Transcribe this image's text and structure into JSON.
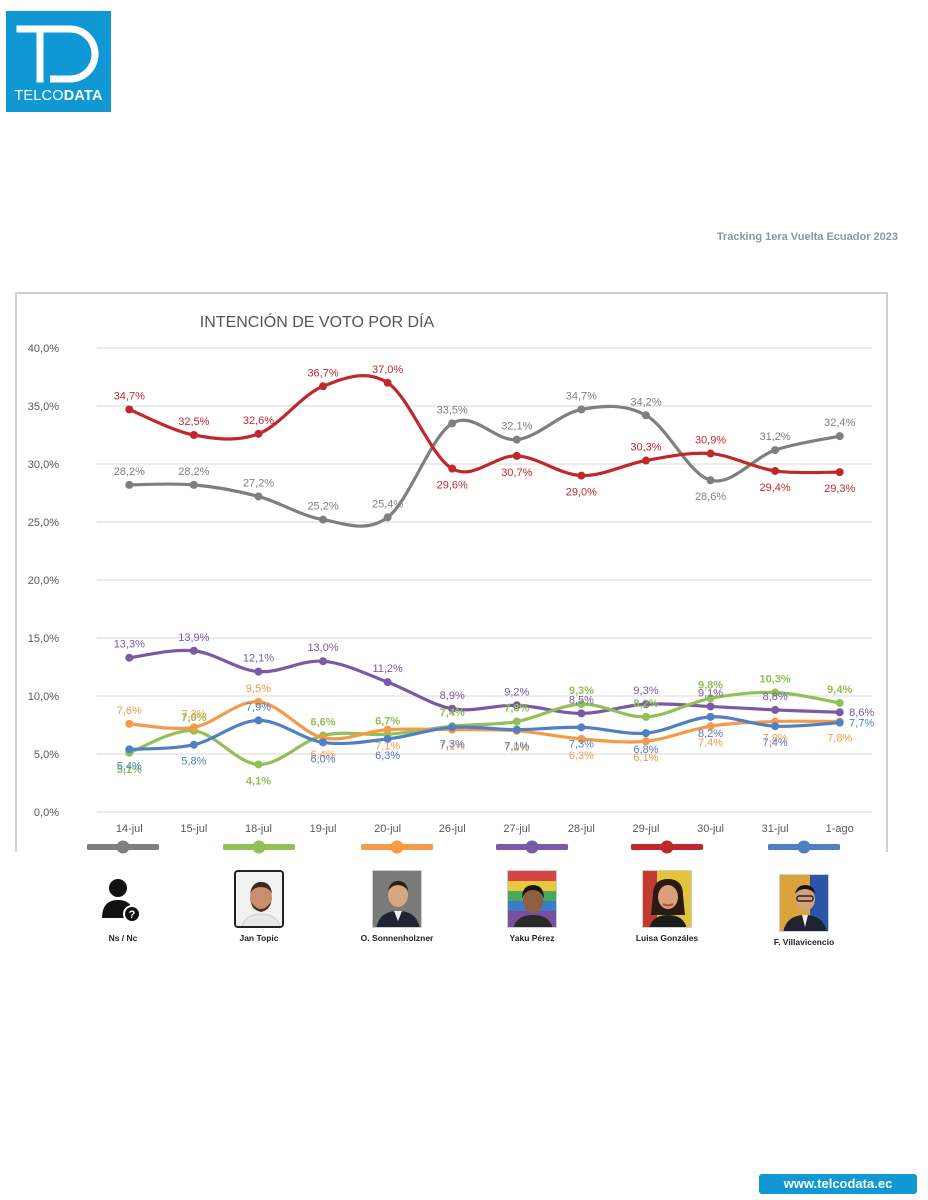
{
  "logo": {
    "mark": "TD",
    "brand_light": "TELCO",
    "brand_bold": "DATA"
  },
  "tracking_title": "Tracking 1era Vuelta Ecuador 2023",
  "footer_url": "www.telcodata.ec",
  "colors": {
    "brand": "#0f98d4",
    "ns_nc": "#7f7f7f",
    "topic": "#92c057",
    "sonnenholzner": "#f59a48",
    "perez": "#7a5aa6",
    "gonzales": "#c0282e",
    "villavicencio": "#4f7fc4"
  },
  "chart_data": {
    "type": "line",
    "title": "INTENCIÓN DE VOTO POR DÍA",
    "categories": [
      "14-jul",
      "15-jul",
      "18-jul",
      "19-jul",
      "20-jul",
      "26-jul",
      "27-jul",
      "28-jul",
      "29-jul",
      "30-jul",
      "31-jul",
      "1-ago"
    ],
    "ylim": [
      0,
      40
    ],
    "yticks": [
      "0,0%",
      "5,0%",
      "10,0%",
      "15,0%",
      "20,0%",
      "25,0%",
      "30,0%",
      "35,0%",
      "40,0%"
    ],
    "grid": true,
    "legend_position": "bottom",
    "series": [
      {
        "key": "ns_nc",
        "name": "Ns / Nc",
        "color": "#7f7f7f",
        "values": [
          28.2,
          28.2,
          27.2,
          25.2,
          25.4,
          33.5,
          32.1,
          34.7,
          34.2,
          28.6,
          31.2,
          32.4
        ],
        "labels": [
          "28,2%",
          "28,2%",
          "27,2%",
          "25,2%",
          "25,4%",
          "33,5%",
          "32,1%",
          "34,7%",
          "34,2%",
          "28,6%",
          "31,2%",
          "32,4%"
        ]
      },
      {
        "key": "gonzales",
        "name": "Luisa Gonzáles",
        "color": "#c0282e",
        "values": [
          34.7,
          32.5,
          32.6,
          36.7,
          37.0,
          29.6,
          30.7,
          29.0,
          30.3,
          30.9,
          29.4,
          29.3
        ],
        "labels": [
          "34,7%",
          "32,5%",
          "32,6%",
          "36,7%",
          "37,0%",
          "29,6%",
          "30,7%",
          "29,0%",
          "30,3%",
          "30,9%",
          "29,4%",
          "29,3%"
        ]
      },
      {
        "key": "perez",
        "name": "Yaku Pérez",
        "color": "#7a5aa6",
        "values": [
          13.3,
          13.9,
          12.1,
          13.0,
          11.2,
          8.9,
          9.2,
          8.5,
          9.3,
          9.1,
          8.8,
          8.6
        ],
        "labels": [
          "13,3%",
          "13,9%",
          "12,1%",
          "13,0%",
          "11,2%",
          "8,9%",
          "9,2%",
          "8,5%",
          "9,3%",
          "9,1%",
          "8,8%",
          "8,6%"
        ]
      },
      {
        "key": "topic",
        "name": "Jan Topic",
        "color": "#92c057",
        "values": [
          5.1,
          7.0,
          4.1,
          6.6,
          6.7,
          7.4,
          7.8,
          9.3,
          8.2,
          9.8,
          10.3,
          9.4
        ],
        "labels": [
          "5,1%",
          "7,0%",
          "4,1%",
          "6,6%",
          "6,7%",
          "7,4%",
          "7,8%",
          "9,3%",
          "8,2%",
          "9,8%",
          "10,3%",
          "9,4%"
        ]
      },
      {
        "key": "sonnenholzner",
        "name": "O. Sonnenholzner",
        "color": "#f59a48",
        "values": [
          7.6,
          7.3,
          9.5,
          6.4,
          7.1,
          7.1,
          7.0,
          6.3,
          6.1,
          7.4,
          7.8,
          7.8
        ],
        "labels": [
          "7,6%",
          "7,3%",
          "9,5%",
          "6,4%",
          "7,1%",
          "7,1%",
          "7,0%",
          "6,3%",
          "6,1%",
          "7,4%",
          "7,8%",
          "7,8%"
        ]
      },
      {
        "key": "villavicencio",
        "name": "F. Villavicencio",
        "color": "#4f7fc4",
        "values": [
          5.4,
          5.8,
          7.9,
          6.0,
          6.3,
          7.3,
          7.1,
          7.3,
          6.8,
          8.2,
          7.4,
          7.7
        ],
        "labels": [
          "5,4%",
          "5,8%",
          "7,9%",
          "6,0%",
          "6,3%",
          "7,3%",
          "7,1%",
          "7,3%",
          "6,8%",
          "8,2%",
          "7,4%",
          "7,7%"
        ]
      }
    ]
  },
  "legend": [
    {
      "key": "ns_nc",
      "label": "Ns / Nc",
      "color": "#7f7f7f",
      "icon": "unknown-person-icon"
    },
    {
      "key": "topic",
      "label": "Jan Topic",
      "color": "#92c057",
      "icon": "candidate-photo"
    },
    {
      "key": "sonnenholzner",
      "label": "O. Sonnenholzner",
      "color": "#f59a48",
      "icon": "candidate-photo"
    },
    {
      "key": "perez",
      "label": "Yaku Pérez",
      "color": "#7a5aa6",
      "icon": "candidate-photo"
    },
    {
      "key": "gonzales",
      "label": "Luisa Gonzáles",
      "color": "#c0282e",
      "icon": "candidate-photo"
    },
    {
      "key": "villavicencio",
      "label": "F. Villavicencio",
      "color": "#4f7fc4",
      "icon": "candidate-photo"
    }
  ]
}
